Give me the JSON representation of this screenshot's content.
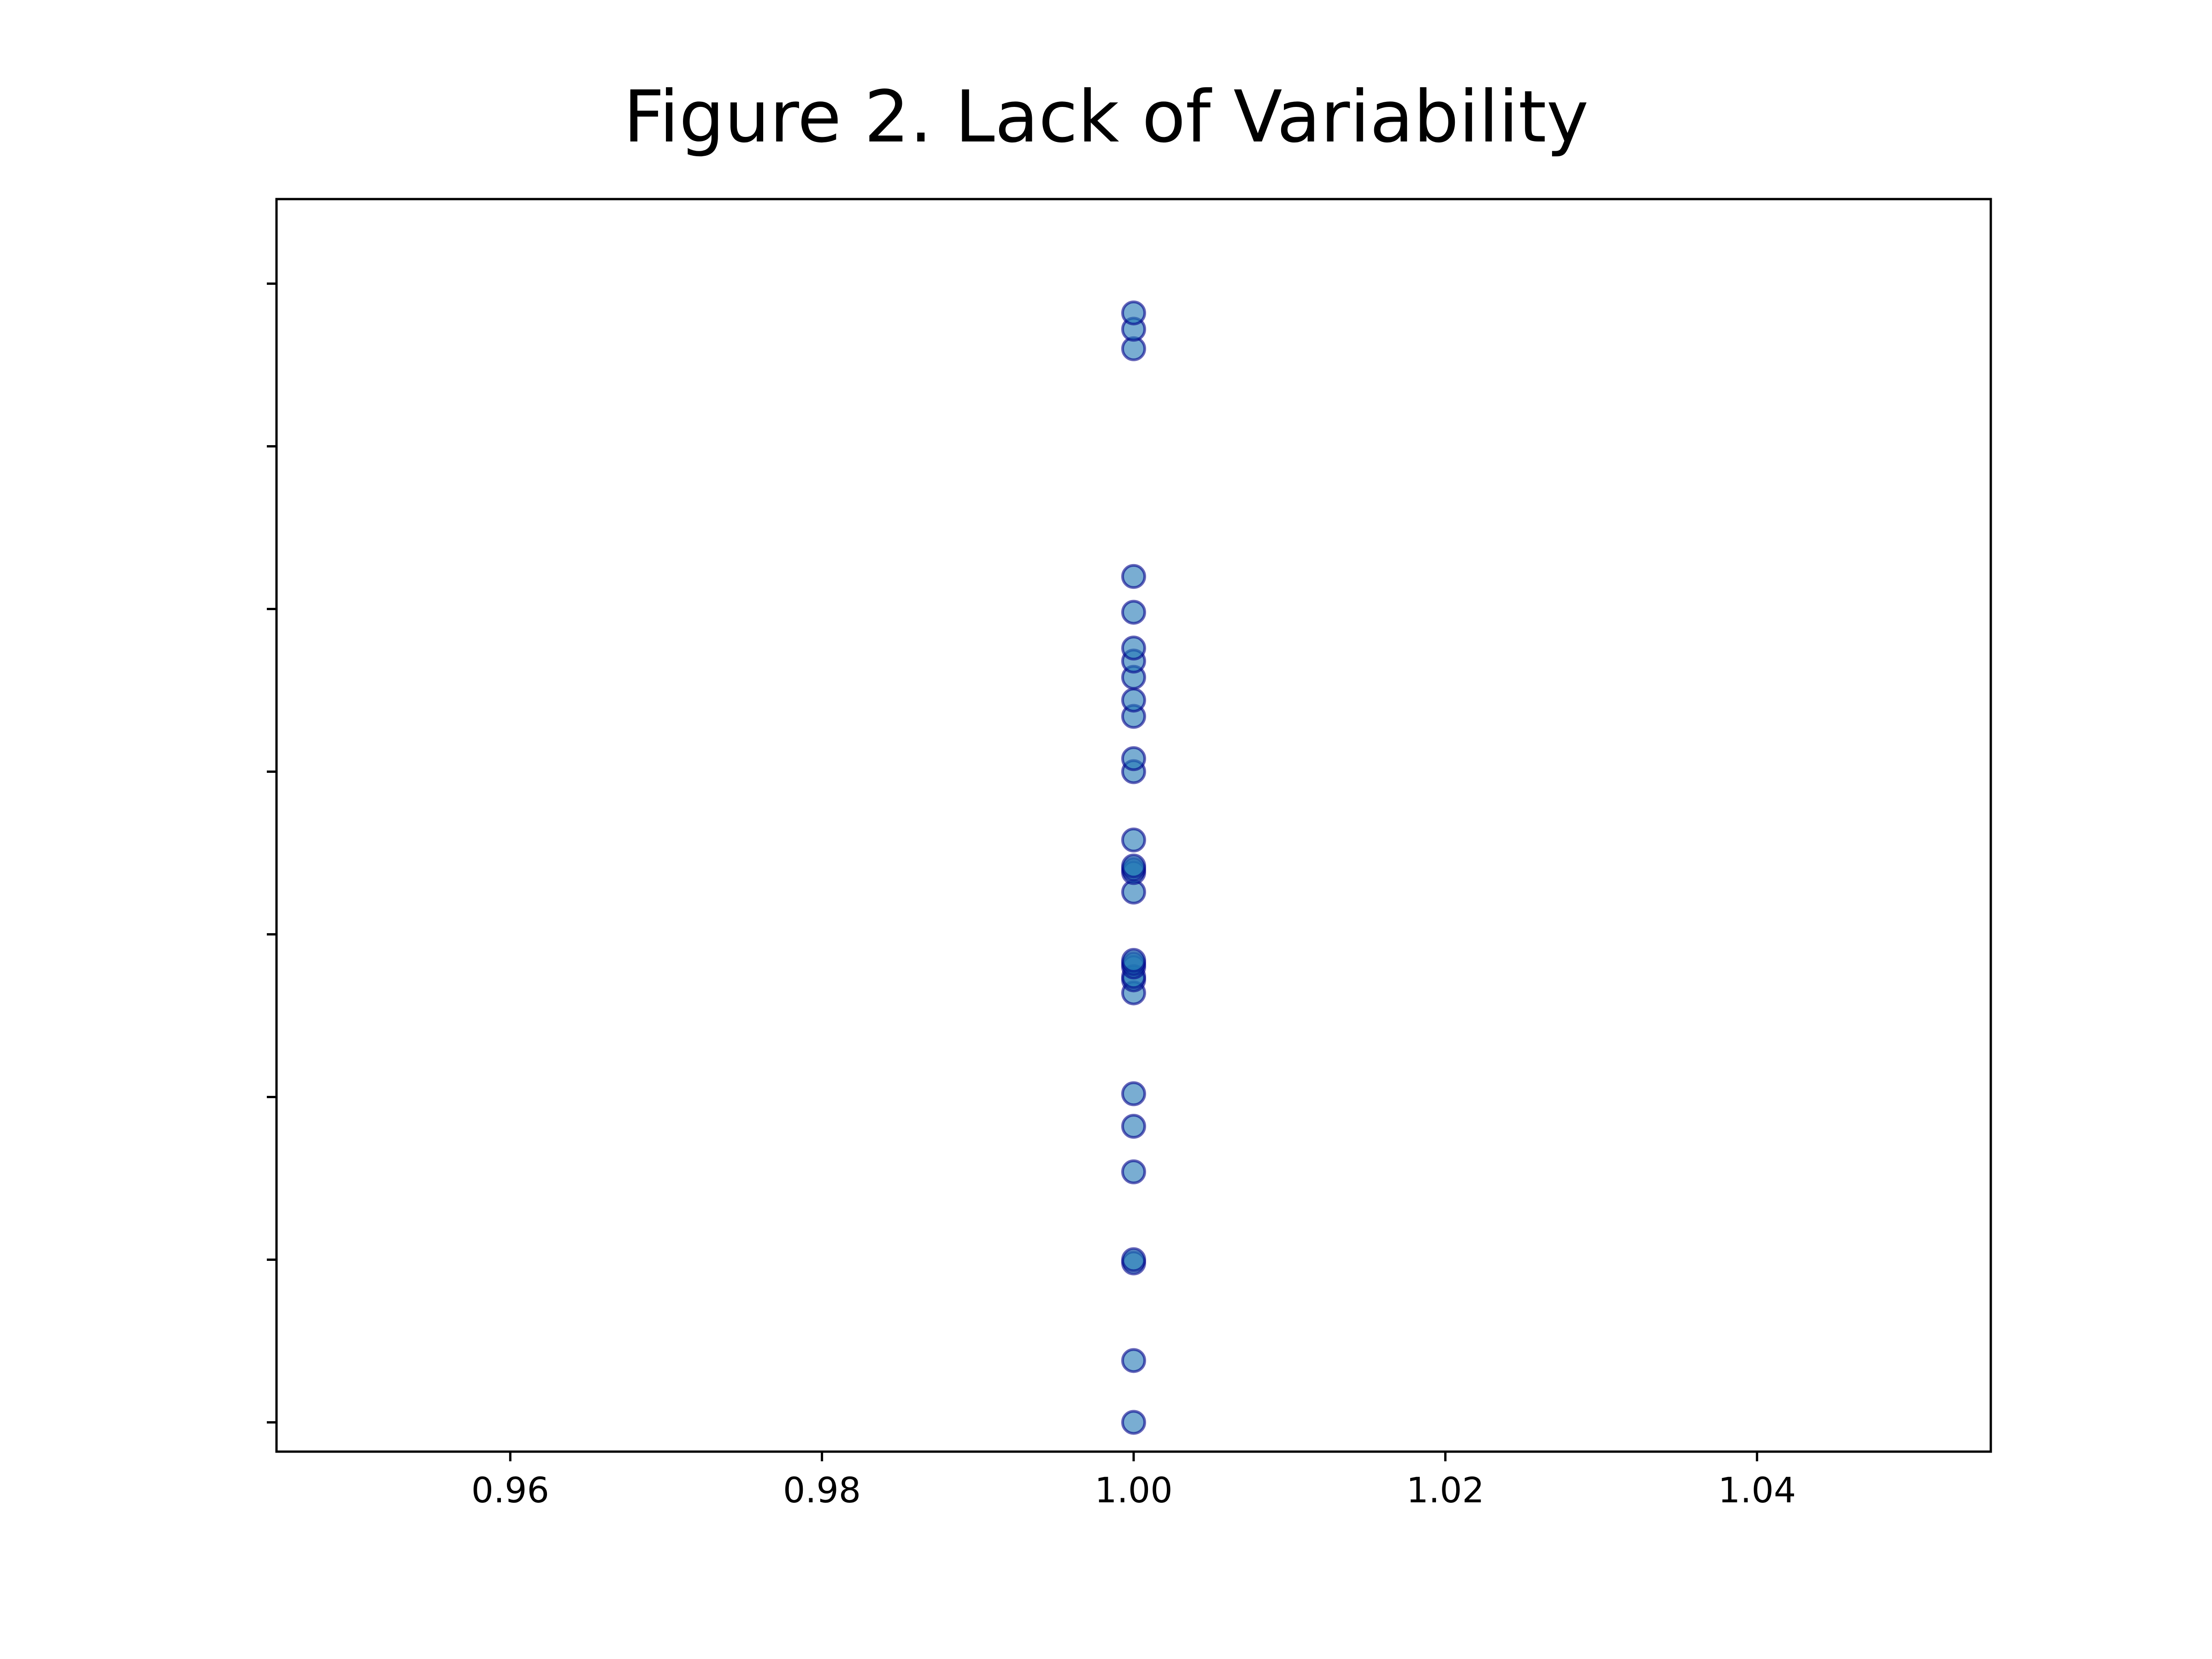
{
  "chart_data": {
    "type": "scatter",
    "title": "Figure 2. Lack of Variability",
    "xlabel": "",
    "ylabel": "",
    "xlim": [
      0.945,
      1.055
    ],
    "ylim": [
      -0.05,
      3.8
    ],
    "x_ticks": [
      0.96,
      0.98,
      1.0,
      1.02,
      1.04
    ],
    "x_tick_labels": [
      "0.96",
      "0.98",
      "1.00",
      "1.02",
      "1.04"
    ],
    "y_ticks": [
      0.04,
      0.54,
      1.04,
      1.54,
      2.04,
      2.54,
      3.04,
      3.54
    ],
    "y_tick_labels": [],
    "grid": false,
    "marker_fill": "#1f77b4",
    "marker_edge": "#00008b",
    "marker_alpha": 0.6,
    "series": [
      {
        "x": [
          1,
          1,
          1,
          1,
          1,
          1,
          1,
          1,
          1,
          1,
          1,
          1,
          1,
          1,
          1,
          1,
          1,
          1,
          1,
          1,
          1,
          1,
          1,
          1,
          1,
          1,
          1,
          1,
          1,
          1
        ],
        "y": [
          0.04,
          0.23,
          0.53,
          0.54,
          0.81,
          0.95,
          1.05,
          1.36,
          1.4,
          1.41,
          1.44,
          1.45,
          1.46,
          1.67,
          1.73,
          1.74,
          1.75,
          1.83,
          2.04,
          2.08,
          2.21,
          2.26,
          2.33,
          2.38,
          2.42,
          2.53,
          2.64,
          3.34,
          3.4,
          3.45
        ]
      }
    ]
  }
}
